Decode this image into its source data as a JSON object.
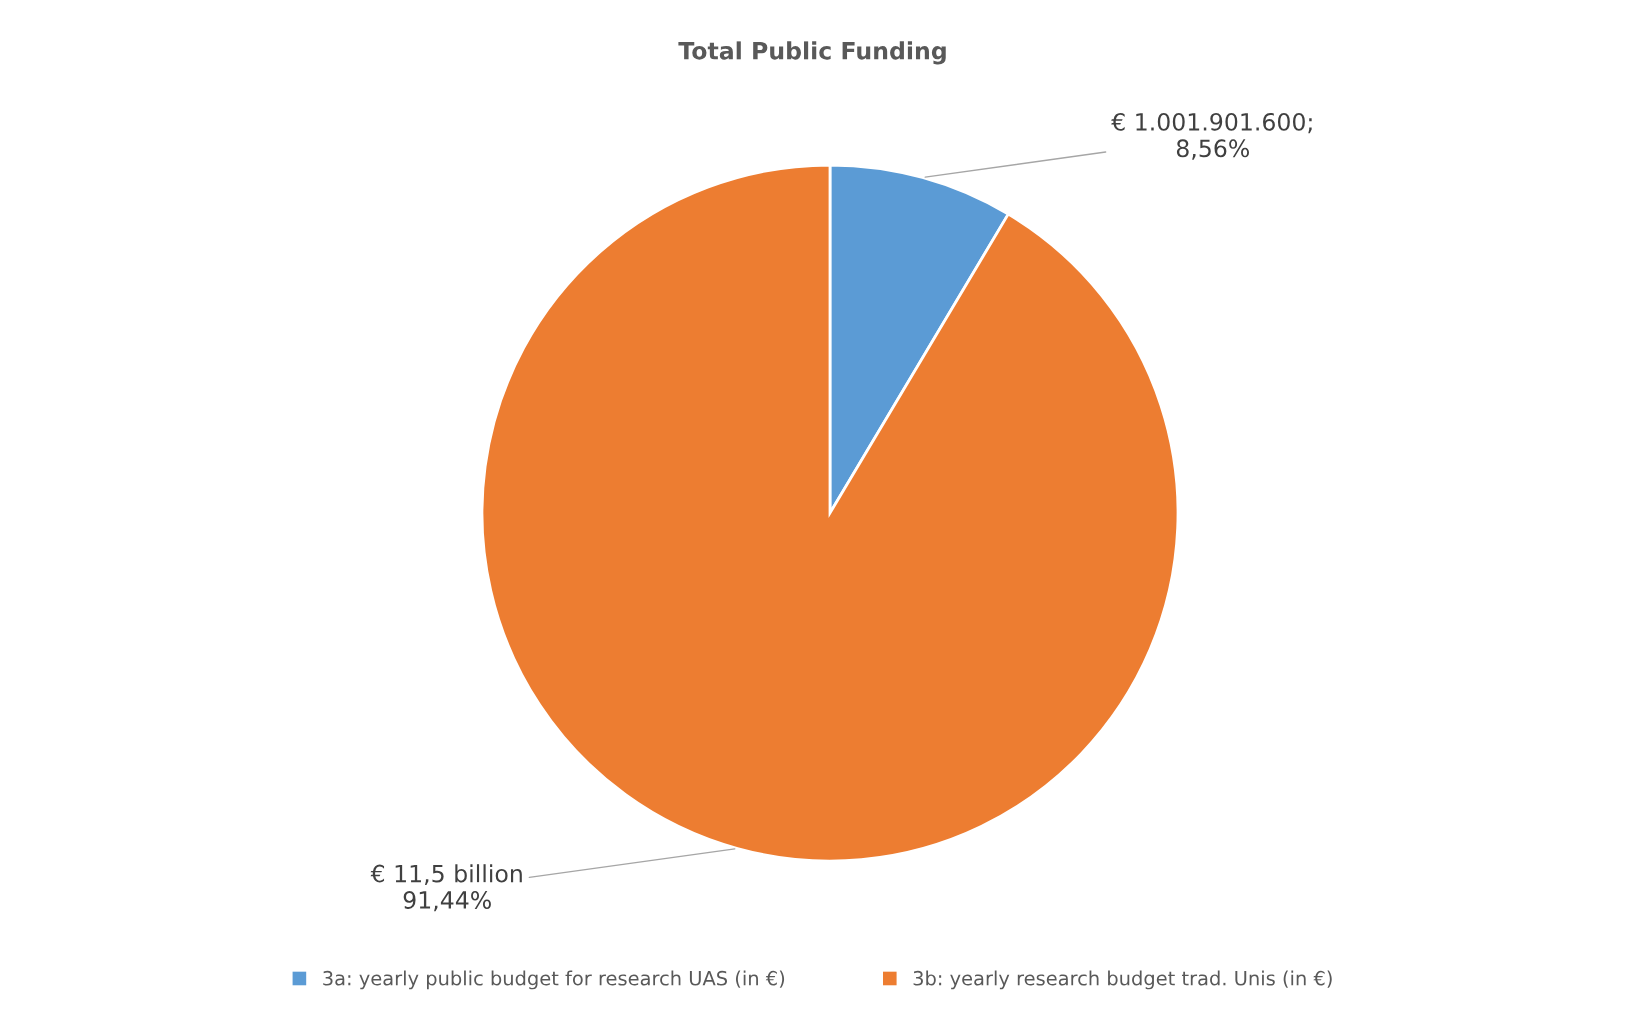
{
  "chart_data": {
    "type": "pie",
    "title": "Total Public Funding",
    "categories": [
      "3a: yearly public budget for research UAS (in €)",
      "3b: yearly research budget trad. Unis (in €)"
    ],
    "values": [
      8.56,
      91.44
    ],
    "colors": [
      "#5b9bd5",
      "#ed7d31"
    ],
    "value_labels": [
      "€ 1.001.901.600;\n8,56%",
      "€ 11,5 billion\n91,44%"
    ],
    "legend": "bottom"
  }
}
